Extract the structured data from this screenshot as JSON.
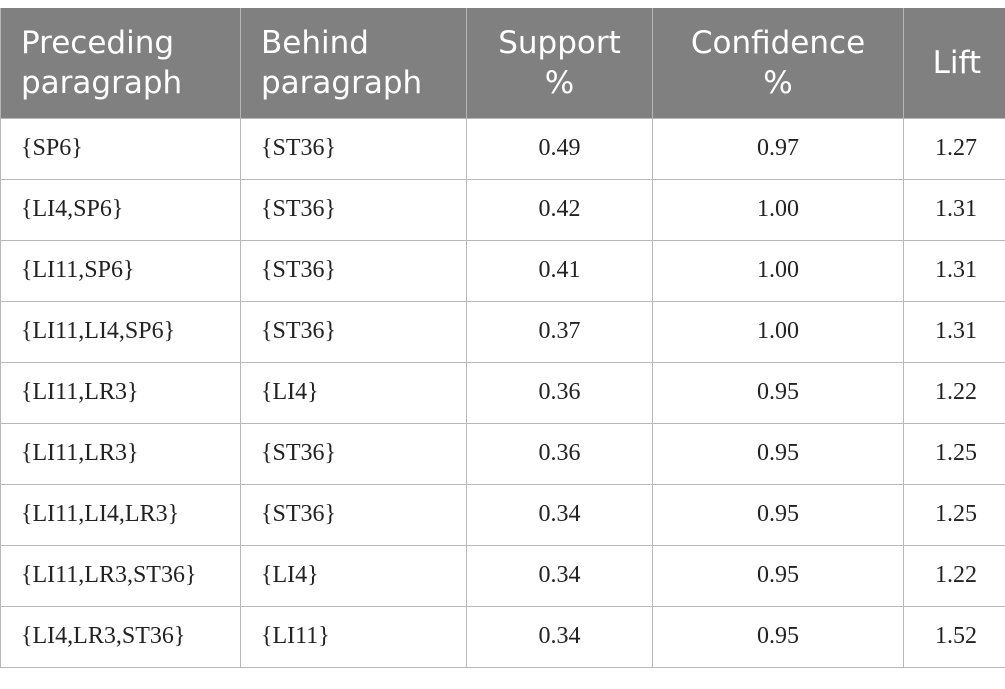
{
  "table": {
    "headers": [
      "Preceding paragraph",
      "Behind paragraph",
      "Support %",
      "Confidence %",
      "Lift"
    ],
    "rows": [
      [
        "{SP6}",
        "{ST36}",
        "0.49",
        "0.97",
        "1.27"
      ],
      [
        "{LI4,SP6}",
        "{ST36}",
        "0.42",
        "1.00",
        "1.31"
      ],
      [
        "{LI11,SP6}",
        "{ST36}",
        "0.41",
        "1.00",
        "1.31"
      ],
      [
        "{LI11,LI4,SP6}",
        "{ST36}",
        "0.37",
        "1.00",
        "1.31"
      ],
      [
        "{LI11,LR3}",
        "{LI4}",
        "0.36",
        "0.95",
        "1.22"
      ],
      [
        "{LI11,LR3}",
        "{ST36}",
        "0.36",
        "0.95",
        "1.25"
      ],
      [
        "{LI11,LI4,LR3}",
        "{ST36}",
        "0.34",
        "0.95",
        "1.25"
      ],
      [
        "{LI11,LR3,ST36}",
        "{LI4}",
        "0.34",
        "0.95",
        "1.22"
      ],
      [
        "{LI4,LR3,ST36}",
        "{LI11}",
        "0.34",
        "0.95",
        "1.52"
      ]
    ]
  }
}
